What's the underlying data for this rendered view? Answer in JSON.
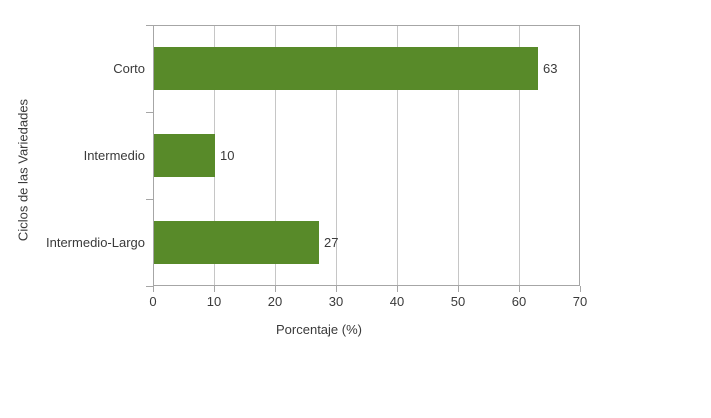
{
  "chart_data": {
    "type": "bar",
    "orientation": "horizontal",
    "categories": [
      "Corto",
      "Intermedio",
      "Intermedio-Largo"
    ],
    "values": [
      63,
      10,
      27
    ],
    "value_labels": [
      "63",
      "10",
      "27"
    ],
    "title": "",
    "xlabel": "Porcentaje (%)",
    "ylabel": "Ciclos de las Variedades",
    "xlim": [
      0,
      70
    ],
    "xticks": [
      0,
      10,
      20,
      30,
      40,
      50,
      60,
      70
    ],
    "grid": "vertical-only",
    "legend": "none",
    "colors": {
      "bar": "#588a29",
      "grid": "#c6c6c6",
      "axis": "#a6a6a6",
      "text": "#3a3a3a",
      "background": "#ffffff"
    }
  }
}
